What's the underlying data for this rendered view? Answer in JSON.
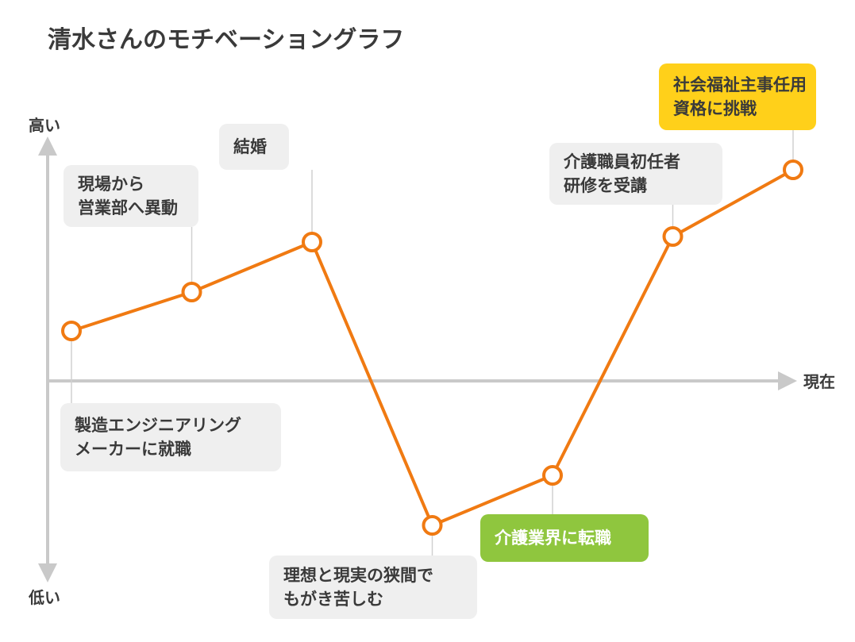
{
  "chart_data": {
    "type": "line",
    "title": "清水さんのモチベーショングラフ",
    "y_axis": {
      "top_label": "高い",
      "bottom_label": "低い"
    },
    "x_axis": {
      "end_label": "現在"
    },
    "grid": false,
    "colors": {
      "line": "#f07a12",
      "axis": "#c9c9c9",
      "callout_default": "#efefef",
      "callout_highlight_yellow": "#ffd01a",
      "callout_highlight_green": "#8fc63e",
      "text_dark": "#3a3a3a",
      "text_light": "#ffffff"
    },
    "points": [
      {
        "x": 1,
        "y": 0.45,
        "label_lines": [
          "製造エンジニアリング",
          "メーカーに就職"
        ],
        "highlight": "none"
      },
      {
        "x": 2,
        "y": 0.8,
        "label_lines": [
          "現場から",
          "営業部へ異動"
        ],
        "highlight": "none"
      },
      {
        "x": 3,
        "y": 1.25,
        "label_lines": [
          "結婚"
        ],
        "highlight": "none"
      },
      {
        "x": 4,
        "y": -1.3,
        "label_lines": [
          "理想と現実の狭間で",
          "もがき苦しむ"
        ],
        "highlight": "none"
      },
      {
        "x": 5,
        "y": -0.85,
        "label_lines": [
          "介護業界に転職"
        ],
        "highlight": "green"
      },
      {
        "x": 6,
        "y": 1.3,
        "label_lines": [
          "介護職員初任者",
          "研修を受講"
        ],
        "highlight": "none"
      },
      {
        "x": 7,
        "y": 1.9,
        "label_lines": [
          "社会福祉主事任用",
          "資格に挑戦"
        ],
        "highlight": "yellow"
      }
    ]
  }
}
